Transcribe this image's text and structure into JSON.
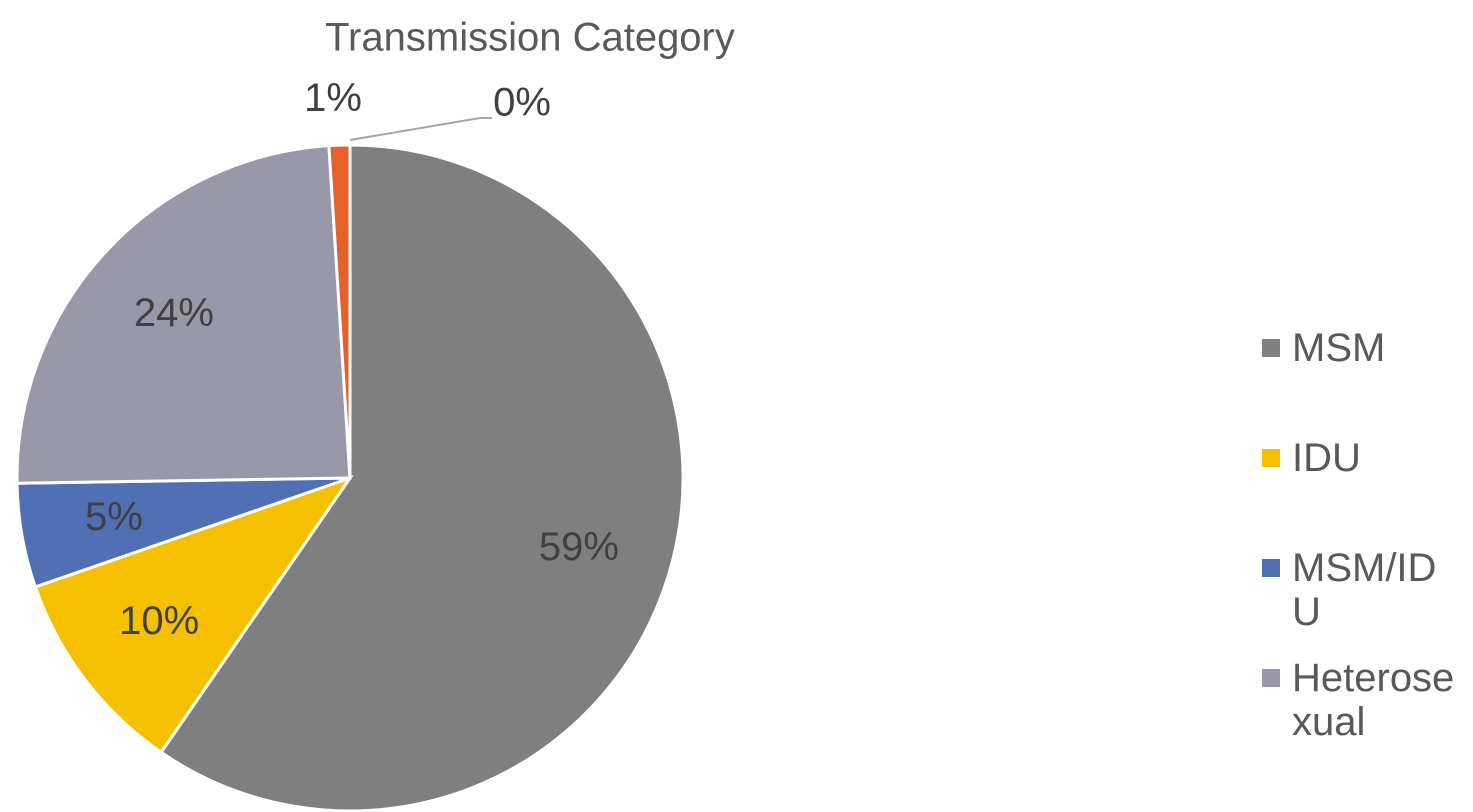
{
  "chart_data": {
    "type": "pie",
    "title": "Transmission Category",
    "categories": [
      "MSM",
      "IDU",
      "MSM/IDU",
      "Heterosexual",
      null,
      null
    ],
    "values": [
      59,
      10,
      5,
      24,
      1,
      0
    ],
    "value_labels": [
      "59%",
      "10%",
      "5%",
      "24%",
      "1%",
      "0%"
    ],
    "colors": [
      "#7f7f7f",
      "#f5c000",
      "#516fb5",
      "#9898a8",
      "#e4622a",
      "#a5a5a5"
    ]
  }
}
